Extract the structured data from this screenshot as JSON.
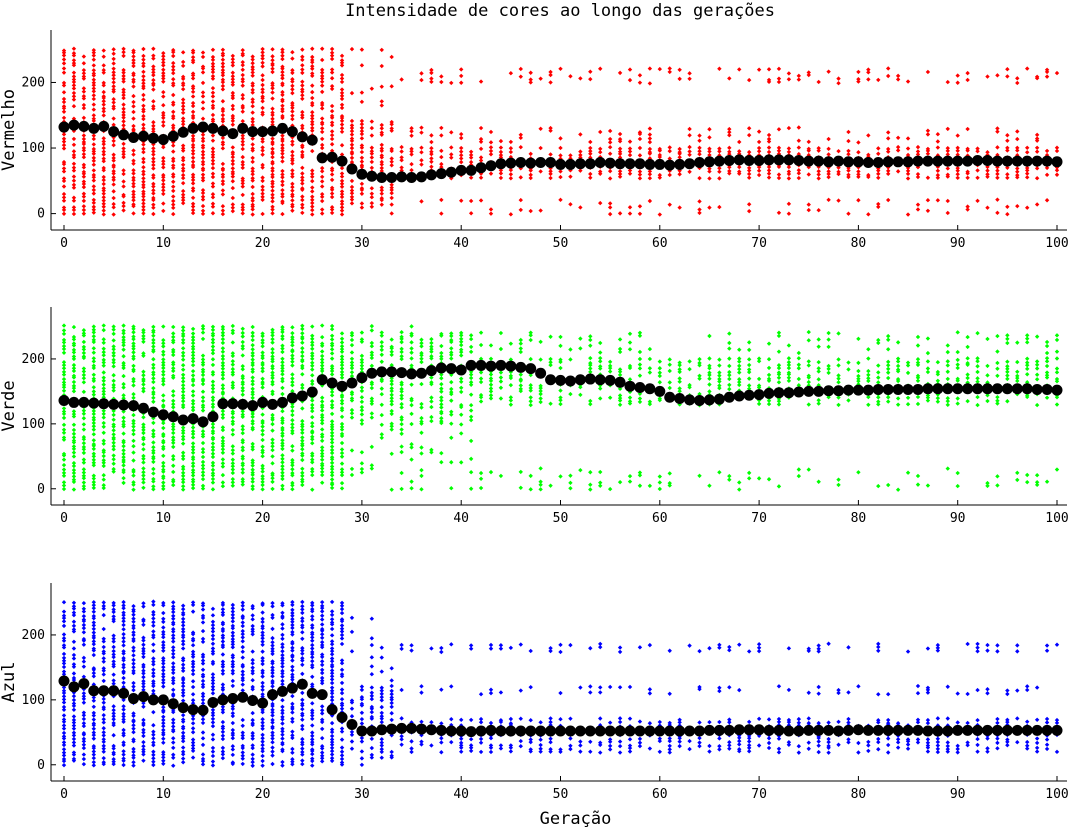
{
  "title": "Intensidade de cores ao longo das gerações",
  "chart_data": [
    {
      "type": "scatter",
      "ylabel": "Vermelho",
      "xlabel": "",
      "xlim": [
        0,
        100
      ],
      "ylim": [
        -25,
        280
      ],
      "x_ticks": [
        0,
        10,
        20,
        30,
        40,
        50,
        60,
        70,
        80,
        90,
        100
      ],
      "y_ticks": [
        0,
        100,
        200
      ],
      "grid": false,
      "point_color": "#ff0000",
      "mean_color": "#000000",
      "x": [
        0,
        1,
        2,
        3,
        4,
        5,
        6,
        7,
        8,
        9,
        10,
        11,
        12,
        13,
        14,
        15,
        16,
        17,
        18,
        19,
        20,
        21,
        22,
        23,
        24,
        25,
        26,
        27,
        28,
        29,
        30,
        31,
        32,
        33,
        34,
        35,
        36,
        37,
        38,
        39,
        40,
        41,
        42,
        43,
        44,
        45,
        46,
        47,
        48,
        49,
        50,
        51,
        52,
        53,
        54,
        55,
        56,
        57,
        58,
        59,
        60,
        61,
        62,
        63,
        64,
        65,
        66,
        67,
        68,
        69,
        70,
        71,
        72,
        73,
        74,
        75,
        76,
        77,
        78,
        79,
        80,
        81,
        82,
        83,
        84,
        85,
        86,
        87,
        88,
        89,
        90,
        91,
        92,
        93,
        94,
        95,
        96,
        97,
        98,
        99,
        100
      ],
      "mean": [
        132,
        135,
        133,
        130,
        133,
        125,
        120,
        116,
        118,
        115,
        113,
        118,
        124,
        130,
        132,
        130,
        126,
        122,
        130,
        125,
        125,
        126,
        130,
        125,
        117,
        112,
        85,
        86,
        80,
        68,
        60,
        57,
        55,
        55,
        56,
        55,
        56,
        59,
        61,
        63,
        66,
        66,
        70,
        73,
        76,
        77,
        78,
        77,
        78,
        78,
        75,
        75,
        76,
        76,
        78,
        77,
        76,
        76,
        76,
        75,
        75,
        74,
        75,
        76,
        78,
        79,
        80,
        81,
        82,
        81,
        81,
        82,
        82,
        82,
        81,
        80,
        80,
        79,
        80,
        79,
        79,
        78,
        78,
        79,
        79,
        79,
        80,
        80,
        80,
        80,
        80,
        80,
        81,
        81,
        80,
        80,
        80,
        80,
        80,
        80,
        79
      ],
      "spread_profile": "0-28: full range 0-250; 29-33: values 0-240 concentrated 20-140; 34-100: mostly 50-100 with outliers near 0-20, 110-130 and 200-220"
    },
    {
      "type": "scatter",
      "ylabel": "Verde",
      "xlabel": "",
      "xlim": [
        0,
        100
      ],
      "ylim": [
        -25,
        280
      ],
      "x_ticks": [
        0,
        10,
        20,
        30,
        40,
        50,
        60,
        70,
        80,
        90,
        100
      ],
      "y_ticks": [
        0,
        100,
        200
      ],
      "grid": false,
      "point_color": "#00ff00",
      "mean_color": "#000000",
      "x": [
        0,
        1,
        2,
        3,
        4,
        5,
        6,
        7,
        8,
        9,
        10,
        11,
        12,
        13,
        14,
        15,
        16,
        17,
        18,
        19,
        20,
        21,
        22,
        23,
        24,
        25,
        26,
        27,
        28,
        29,
        30,
        31,
        32,
        33,
        34,
        35,
        36,
        37,
        38,
        39,
        40,
        41,
        42,
        43,
        44,
        45,
        46,
        47,
        48,
        49,
        50,
        51,
        52,
        53,
        54,
        55,
        56,
        57,
        58,
        59,
        60,
        61,
        62,
        63,
        64,
        65,
        66,
        67,
        68,
        69,
        70,
        71,
        72,
        73,
        74,
        75,
        76,
        77,
        78,
        79,
        80,
        81,
        82,
        83,
        84,
        85,
        86,
        87,
        88,
        89,
        90,
        91,
        92,
        93,
        94,
        95,
        96,
        97,
        98,
        99,
        100
      ],
      "mean": [
        136,
        133,
        133,
        132,
        131,
        130,
        129,
        128,
        124,
        118,
        114,
        111,
        106,
        108,
        103,
        111,
        131,
        131,
        130,
        128,
        133,
        130,
        133,
        140,
        143,
        149,
        168,
        163,
        158,
        163,
        171,
        178,
        180,
        180,
        179,
        177,
        178,
        182,
        186,
        185,
        183,
        190,
        190,
        189,
        190,
        189,
        187,
        185,
        178,
        168,
        167,
        166,
        168,
        169,
        168,
        167,
        164,
        158,
        156,
        154,
        150,
        141,
        139,
        137,
        136,
        137,
        138,
        141,
        143,
        144,
        145,
        147,
        148,
        148,
        149,
        150,
        150,
        151,
        151,
        152,
        152,
        152,
        153,
        153,
        153,
        153,
        153,
        154,
        154,
        154,
        154,
        154,
        154,
        154,
        154,
        154,
        154,
        154,
        153,
        153,
        152
      ],
      "spread_profile": "0-28: full range 0-250; 29-41: values 0-240 concentrated 100-240; 42-100: mostly 130-200 with outliers near 0-30 and 210-240"
    },
    {
      "type": "scatter",
      "ylabel": "Azul",
      "xlabel": "Geração",
      "xlim": [
        0,
        100
      ],
      "ylim": [
        -25,
        280
      ],
      "x_ticks": [
        0,
        10,
        20,
        30,
        40,
        50,
        60,
        70,
        80,
        90,
        100
      ],
      "y_ticks": [
        0,
        100,
        200
      ],
      "grid": false,
      "point_color": "#0000ff",
      "mean_color": "#000000",
      "x": [
        0,
        1,
        2,
        3,
        4,
        5,
        6,
        7,
        8,
        9,
        10,
        11,
        12,
        13,
        14,
        15,
        16,
        17,
        18,
        19,
        20,
        21,
        22,
        23,
        24,
        25,
        26,
        27,
        28,
        29,
        30,
        31,
        32,
        33,
        34,
        35,
        36,
        37,
        38,
        39,
        40,
        41,
        42,
        43,
        44,
        45,
        46,
        47,
        48,
        49,
        50,
        51,
        52,
        53,
        54,
        55,
        56,
        57,
        58,
        59,
        60,
        61,
        62,
        63,
        64,
        65,
        66,
        67,
        68,
        69,
        70,
        71,
        72,
        73,
        74,
        75,
        76,
        77,
        78,
        79,
        80,
        81,
        82,
        83,
        84,
        85,
        86,
        87,
        88,
        89,
        90,
        91,
        92,
        93,
        94,
        95,
        96,
        97,
        98,
        99,
        100
      ],
      "mean": [
        129,
        120,
        125,
        114,
        114,
        114,
        110,
        102,
        105,
        100,
        100,
        94,
        88,
        85,
        84,
        96,
        100,
        102,
        104,
        99,
        95,
        108,
        113,
        118,
        124,
        110,
        108,
        85,
        73,
        62,
        52,
        52,
        54,
        55,
        56,
        56,
        55,
        54,
        53,
        52,
        52,
        51,
        52,
        53,
        52,
        52,
        52,
        52,
        52,
        52,
        52,
        52,
        52,
        52,
        52,
        52,
        52,
        52,
        52,
        52,
        52,
        52,
        52,
        52,
        52,
        53,
        53,
        53,
        54,
        54,
        54,
        53,
        53,
        52,
        52,
        53,
        53,
        53,
        52,
        53,
        54,
        53,
        53,
        53,
        53,
        53,
        53,
        52,
        52,
        52,
        53,
        53,
        53,
        53,
        53,
        53,
        53,
        53,
        53,
        53,
        53
      ],
      "spread_profile": "0-28: full range 0-250; 29-33: values 0-220 concentrated 20-120; 34-100: mostly 20-70 with outliers near 110-120 and 180"
    }
  ]
}
